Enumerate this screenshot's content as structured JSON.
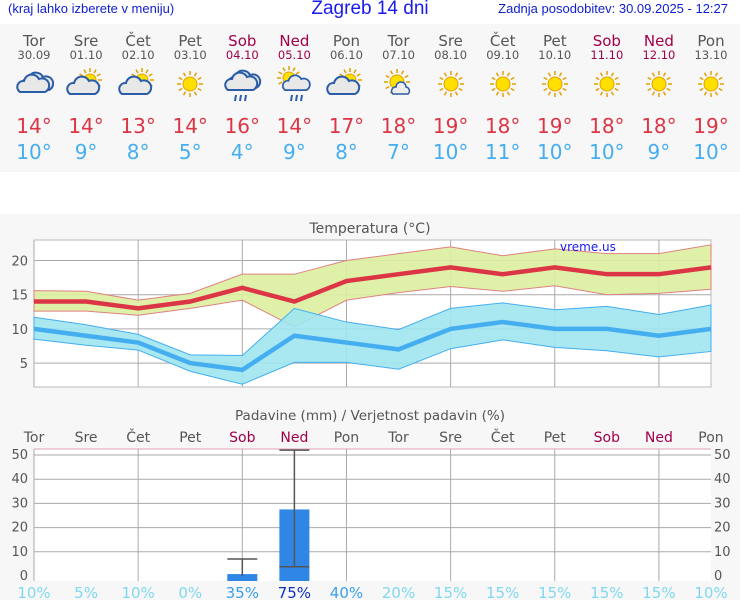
{
  "header": {
    "hint": "(kraj lahko izberete v meniju)",
    "title": "Zagreb 14 dni",
    "updated": "Zadnja posodobitev: 30.09.2025 - 12:27"
  },
  "days": [
    {
      "name": "Tor",
      "date": "30.09",
      "icon": "cloudy",
      "max": "14°",
      "min": "10°",
      "weekend": false
    },
    {
      "name": "Sre",
      "date": "01.10",
      "icon": "partly-cloudy",
      "max": "14°",
      "min": "9°",
      "weekend": false
    },
    {
      "name": "Čet",
      "date": "02.10",
      "icon": "partly-cloudy",
      "max": "13°",
      "min": "8°",
      "weekend": false
    },
    {
      "name": "Pet",
      "date": "03.10",
      "icon": "sunny",
      "max": "14°",
      "min": "5°",
      "weekend": false
    },
    {
      "name": "Sob",
      "date": "04.10",
      "icon": "rain",
      "max": "16°",
      "min": "4°",
      "weekend": true
    },
    {
      "name": "Ned",
      "date": "05.10",
      "icon": "sun-rain",
      "max": "14°",
      "min": "9°",
      "weekend": true
    },
    {
      "name": "Pon",
      "date": "06.10",
      "icon": "partly-cloudy",
      "max": "17°",
      "min": "8°",
      "weekend": false
    },
    {
      "name": "Tor",
      "date": "07.10",
      "icon": "mostly-sunny",
      "max": "18°",
      "min": "7°",
      "weekend": false
    },
    {
      "name": "Sre",
      "date": "08.10",
      "icon": "sunny",
      "max": "19°",
      "min": "10°",
      "weekend": false
    },
    {
      "name": "Čet",
      "date": "09.10",
      "icon": "sunny",
      "max": "18°",
      "min": "11°",
      "weekend": false
    },
    {
      "name": "Pet",
      "date": "10.10",
      "icon": "sunny",
      "max": "19°",
      "min": "10°",
      "weekend": false
    },
    {
      "name": "Sob",
      "date": "11.10",
      "icon": "sunny",
      "max": "18°",
      "min": "10°",
      "weekend": true
    },
    {
      "name": "Ned",
      "date": "12.10",
      "icon": "sunny",
      "max": "18°",
      "min": "9°",
      "weekend": true
    },
    {
      "name": "Pon",
      "date": "13.10",
      "icon": "sunny",
      "max": "19°",
      "min": "10°",
      "weekend": false
    }
  ],
  "chart_data": [
    {
      "type": "area",
      "title": "Temperatura (°C)",
      "watermark": "vreme.us",
      "ylim": [
        1.5,
        23
      ],
      "yticks": [
        "5",
        "10",
        "15",
        "20"
      ],
      "grid": true,
      "series": [
        {
          "role": "max",
          "color": "#dc3545",
          "values": [
            14,
            14,
            13,
            14,
            16,
            14,
            17,
            18,
            19,
            18,
            19,
            18,
            18,
            19
          ]
        },
        {
          "role": "max-range-upper",
          "color": "#dcef9f",
          "values": [
            15.6,
            15.5,
            14.2,
            15.2,
            18,
            18,
            20,
            21,
            22,
            20.7,
            21.7,
            21,
            21,
            22.3
          ]
        },
        {
          "role": "max-range-lower",
          "color": "#dcef9f",
          "values": [
            12.6,
            12.6,
            12,
            13,
            14.2,
            10.3,
            14.2,
            15.3,
            16.2,
            15.5,
            16.3,
            15,
            15.2,
            15.8
          ]
        },
        {
          "role": "min",
          "color": "#44aef0",
          "values": [
            10,
            9,
            8,
            5,
            4,
            9,
            8,
            7,
            10,
            11,
            10,
            10,
            9,
            10
          ]
        },
        {
          "role": "min-range-upper",
          "color": "#a0e6f0",
          "values": [
            11.7,
            10.6,
            9.2,
            6.2,
            6.1,
            13,
            11,
            9.9,
            13,
            13.8,
            12.8,
            13.3,
            12.1,
            13.5
          ]
        },
        {
          "role": "min-range-lower",
          "color": "#a0e6f0",
          "values": [
            8.5,
            7.6,
            6.9,
            3.8,
            1.9,
            5.1,
            5.1,
            4.1,
            7.1,
            8.4,
            7.3,
            6.8,
            5.9,
            6.7
          ]
        }
      ]
    },
    {
      "type": "bar",
      "title": "Padavine (mm) / Verjetnost padavin (%)",
      "ylim": [
        0,
        52
      ],
      "yticks": [
        "0",
        "10",
        "20",
        "30",
        "40",
        "50"
      ],
      "grid": true,
      "categories": [
        "Tor",
        "Sre",
        "Čet",
        "Pet",
        "Sob",
        "Ned",
        "Pon",
        "Tor",
        "Sre",
        "Čet",
        "Pet",
        "Sob",
        "Ned",
        "Pon"
      ],
      "values": [
        0,
        0,
        0,
        0,
        0.8,
        27.5,
        0,
        0,
        0,
        0,
        0,
        0,
        0,
        0
      ],
      "error_low": [
        null,
        null,
        null,
        null,
        0,
        3.8,
        null,
        null,
        null,
        null,
        null,
        null,
        null,
        null
      ],
      "error_high": [
        null,
        null,
        null,
        null,
        7,
        52,
        null,
        null,
        null,
        null,
        null,
        null,
        null,
        null
      ],
      "probability": [
        "10%",
        "5%",
        "10%",
        "0%",
        "35%",
        "75%",
        "40%",
        "20%",
        "15%",
        "15%",
        "15%",
        "15%",
        "15%",
        "10%"
      ],
      "bar_color": "#2f86e4"
    }
  ]
}
